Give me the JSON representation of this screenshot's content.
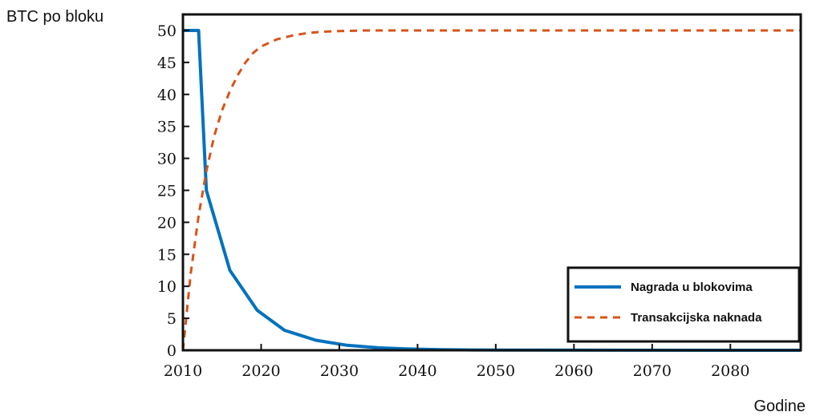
{
  "chart_data": {
    "type": "line",
    "ylabel": "BTC po bloku",
    "xlabel": "Godine",
    "xlim": [
      2010,
      2089
    ],
    "ylim": [
      0,
      52.5
    ],
    "xticks": [
      2010,
      2020,
      2030,
      2040,
      2050,
      2060,
      2070,
      2080
    ],
    "yticks": [
      0,
      5,
      10,
      15,
      20,
      25,
      30,
      35,
      40,
      45,
      50
    ],
    "grid": false,
    "legend_position": "bottom-right",
    "series": [
      {
        "name": "Nagrada u blokovima",
        "style": "solid",
        "color": "#0072BD",
        "x": [
          2010,
          2012,
          2012,
          2013,
          2013,
          2016,
          2016,
          2019.5,
          2019.5,
          2023,
          2023,
          2027,
          2027,
          2031,
          2031,
          2035,
          2035,
          2039,
          2039,
          2043,
          2043,
          2047,
          2047,
          2051,
          2051,
          2089
        ],
        "y": [
          50,
          50,
          50,
          25,
          25,
          12.5,
          12.5,
          6.25,
          6.25,
          3.125,
          3.125,
          1.5625,
          1.5625,
          0.78,
          0.78,
          0.39,
          0.39,
          0.2,
          0.2,
          0.1,
          0.1,
          0.05,
          0.05,
          0.02,
          0.02,
          0
        ]
      },
      {
        "name": "Transakcijska naknada",
        "style": "dashed",
        "color": "#D95319",
        "x": [
          2010,
          2011,
          2012,
          2013,
          2014,
          2015,
          2016,
          2017,
          2018,
          2019,
          2020,
          2022,
          2024,
          2026,
          2028,
          2030,
          2033,
          2036,
          2040,
          2045,
          2050,
          2060,
          2070,
          2080,
          2089
        ],
        "y": [
          0,
          12,
          21,
          28,
          33.5,
          37.5,
          40.5,
          43,
          45,
          46.5,
          47.5,
          48.6,
          49.2,
          49.6,
          49.8,
          49.9,
          50,
          50,
          50,
          50,
          50,
          50,
          50,
          50,
          50
        ]
      }
    ]
  }
}
